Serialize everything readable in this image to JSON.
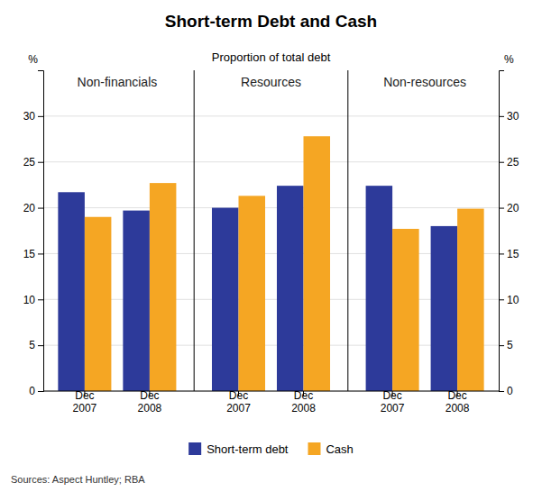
{
  "chart_data": {
    "type": "bar",
    "title": "Short-term Debt and Cash",
    "subtitle": "Proportion of total debt",
    "ylabel": "%",
    "y2label": "%",
    "source": "Sources: Aspect Huntley; RBA",
    "sections": [
      "Non-financials",
      "Resources",
      "Non-resources"
    ],
    "categories": [
      "Dec\n2007",
      "Dec\n2008",
      "Dec\n2007",
      "Dec\n2008",
      "Dec\n2007",
      "Dec\n2008"
    ],
    "series": [
      {
        "name": "Short-term debt",
        "color": "#2d3a9a",
        "values": [
          21.7,
          19.7,
          20.0,
          22.4,
          22.4,
          18.0
        ]
      },
      {
        "name": "Cash",
        "color": "#f5a623",
        "values": [
          19.0,
          22.7,
          21.3,
          27.8,
          17.7,
          19.9
        ]
      }
    ],
    "ylim": [
      0,
      35
    ],
    "yticks": [
      0,
      5,
      10,
      15,
      20,
      25,
      30
    ],
    "y2lim": [
      0,
      35
    ],
    "y2ticks": [
      0,
      5,
      10,
      15,
      20,
      25,
      30
    ],
    "grid": true,
    "legend": "bottom"
  }
}
